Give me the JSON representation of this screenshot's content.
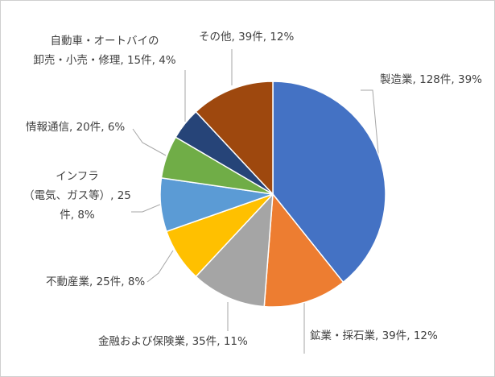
{
  "chart_data": {
    "type": "pie",
    "title": "",
    "slices": [
      {
        "name": "製造業",
        "count": 128,
        "percent": 39,
        "color": "#4472c4",
        "label_lines": [
          "製造業, 128件, 39%"
        ]
      },
      {
        "name": "鉱業・採石業",
        "count": 39,
        "percent": 12,
        "color": "#ed7d31",
        "label_lines": [
          "鉱業・採石業, 39件, 12%"
        ]
      },
      {
        "name": "金融および保険業",
        "count": 35,
        "percent": 11,
        "color": "#a5a5a5",
        "label_lines": [
          "金融および保険業, 35件, 11%"
        ]
      },
      {
        "name": "不動産業",
        "count": 25,
        "percent": 8,
        "color": "#ffc000",
        "label_lines": [
          "不動産業, 25件, 8%"
        ]
      },
      {
        "name": "インフラ（電気、ガス等）",
        "count": 25,
        "percent": 8,
        "color": "#5b9bd5",
        "label_lines": [
          "インフラ",
          "（電気、ガス等）, 25",
          "件, 8%"
        ]
      },
      {
        "name": "情報通信",
        "count": 20,
        "percent": 6,
        "color": "#70ad47",
        "label_lines": [
          "情報通信, 20件, 6%"
        ]
      },
      {
        "name": "自動車・オートバイの卸売・小売・修理",
        "count": 15,
        "percent": 4,
        "color": "#264478",
        "label_lines": [
          "自動車・オートバイの",
          "卸売・小売・修理, 15件, 4%"
        ]
      },
      {
        "name": "その他",
        "count": 39,
        "percent": 12,
        "color": "#9e480e",
        "label_lines": [
          "その他, 39件, 12%"
        ]
      }
    ]
  }
}
